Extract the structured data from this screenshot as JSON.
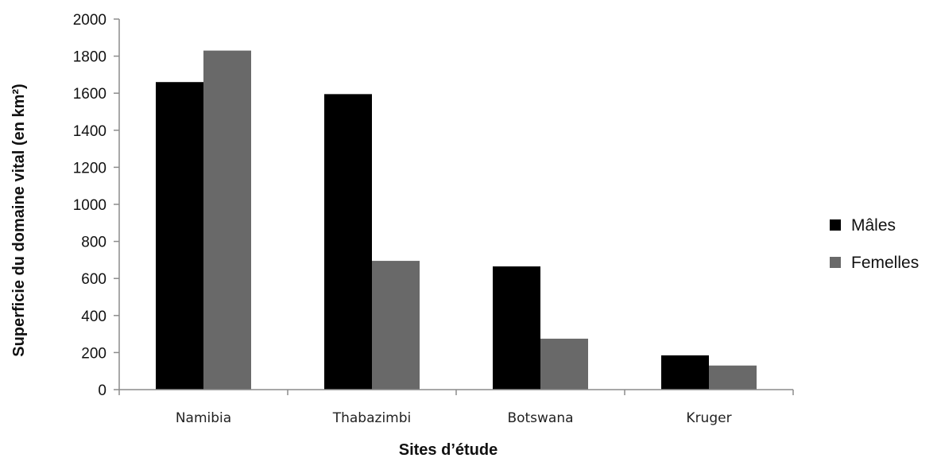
{
  "chart_data": {
    "type": "bar",
    "title": "",
    "xlabel": "Sites d’étude",
    "ylabel": "Superficie du domaine vital (en km²)",
    "categories": [
      "Namibia",
      "Thabazimbi",
      "Botswana",
      "Kruger"
    ],
    "series": [
      {
        "name": "Mâles",
        "color": "#000000",
        "values": [
          1660,
          1595,
          665,
          185
        ]
      },
      {
        "name": "Femelles",
        "color": "#696969",
        "values": [
          1830,
          695,
          275,
          130
        ]
      }
    ],
    "ylim": [
      0,
      2000
    ],
    "yticks": [
      0,
      200,
      400,
      600,
      800,
      1000,
      1200,
      1400,
      1600,
      1800,
      2000
    ],
    "grid": false,
    "legend_position": "right"
  }
}
